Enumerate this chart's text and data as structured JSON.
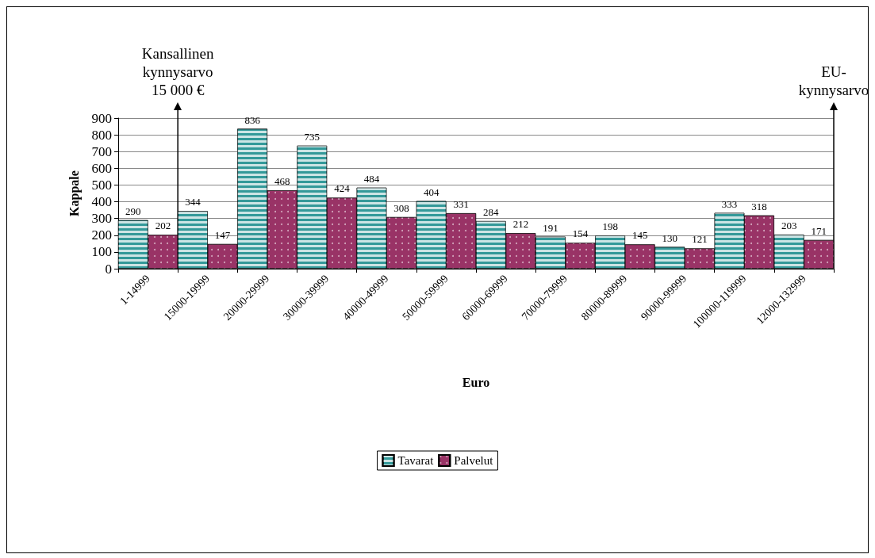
{
  "chart_data": {
    "type": "bar",
    "xlabel": "Euro",
    "ylabel": "Kappale",
    "categories": [
      "1-14999",
      "15000-19999",
      "20000-29999",
      "30000-39999",
      "40000-49999",
      "50000-59999",
      "60000-69999",
      "70000-79999",
      "80000-89999",
      "90000-99999",
      "100000-119999",
      "12000-132999"
    ],
    "series": [
      {
        "name": "Tavarat",
        "color": "#339999",
        "values": [
          290,
          344,
          836,
          735,
          484,
          404,
          284,
          191,
          198,
          130,
          333,
          203
        ]
      },
      {
        "name": "Palvelut",
        "color": "#993366",
        "values": [
          202,
          147,
          468,
          424,
          308,
          331,
          212,
          154,
          145,
          121,
          318,
          171
        ]
      }
    ],
    "ylim": [
      0,
      900
    ],
    "yticks": [
      0,
      100,
      200,
      300,
      400,
      500,
      600,
      700,
      800,
      900
    ],
    "grid": "y",
    "legend": "bottom",
    "data_labels": true,
    "ref_lines": [
      {
        "axis": "x",
        "value": "1-14999",
        "label": "Kansallinen\nkynnysarvo\n15 000 €",
        "color": "#000000"
      },
      {
        "axis": "x",
        "value": "12000-132999",
        "label": "EU-\nkynnysarvo",
        "color": "#000000"
      }
    ]
  }
}
